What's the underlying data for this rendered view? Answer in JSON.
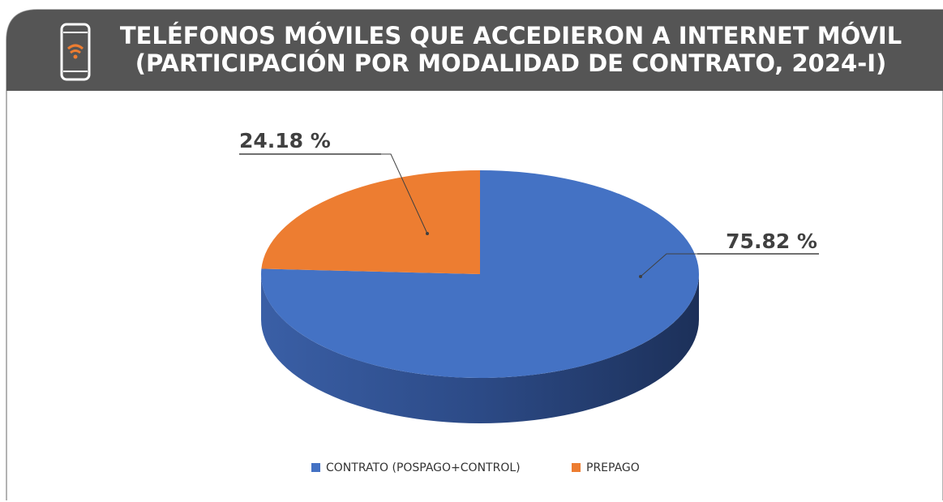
{
  "chart_data": {
    "type": "pie",
    "title": "TELÉFONOS MÓVILES QUE ACCEDIERON A INTERNET MÓVIL",
    "subtitle": "(PARTICIPACIÓN POR MODALIDAD DE CONTRATO, 2024-I)",
    "categories": [
      "CONTRATO (POSPAGO+CONTROL)",
      "PREPAGO"
    ],
    "values": [
      75.82,
      24.18
    ],
    "value_labels": [
      "75.82 %",
      "24.18 %"
    ],
    "colors": [
      "#4472c4",
      "#ed7d31"
    ],
    "legend": "bottom"
  }
}
